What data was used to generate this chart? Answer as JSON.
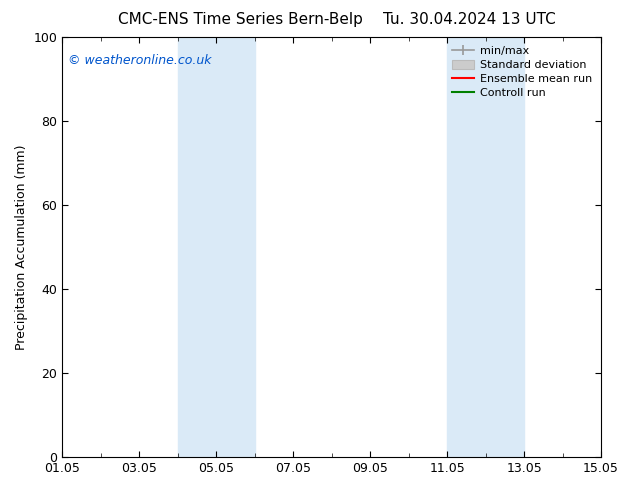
{
  "title_left": "CMC-ENS Time Series Bern-Belp",
  "title_right": "Tu. 30.04.2024 13 UTC",
  "ylabel": "Precipitation Accumulation (mm)",
  "ylim": [
    0,
    100
  ],
  "yticks": [
    0,
    20,
    40,
    60,
    80,
    100
  ],
  "x_start": 0,
  "x_end": 14,
  "xtick_labels": [
    "01.05",
    "03.05",
    "05.05",
    "07.05",
    "09.05",
    "11.05",
    "13.05",
    "15.05"
  ],
  "xtick_positions": [
    0,
    2,
    4,
    6,
    8,
    10,
    12,
    14
  ],
  "shaded_bands": [
    {
      "x_start": 3.0,
      "x_end": 5.0
    },
    {
      "x_start": 10.0,
      "x_end": 12.0
    }
  ],
  "shaded_color": "#daeaf7",
  "watermark_text": "© weatheronline.co.uk",
  "watermark_color": "#0055cc",
  "legend_items": [
    {
      "label": "min/max",
      "color": "#aaaaaa",
      "style": "line_with_caps"
    },
    {
      "label": "Standard deviation",
      "color": "#cccccc",
      "style": "filled"
    },
    {
      "label": "Ensemble mean run",
      "color": "#ff0000",
      "style": "line"
    },
    {
      "label": "Controll run",
      "color": "#008000",
      "style": "line"
    }
  ],
  "bg_color": "#ffffff",
  "font_size": 9,
  "title_fontsize": 11,
  "watermark_fontsize": 9,
  "legend_fontsize": 8
}
